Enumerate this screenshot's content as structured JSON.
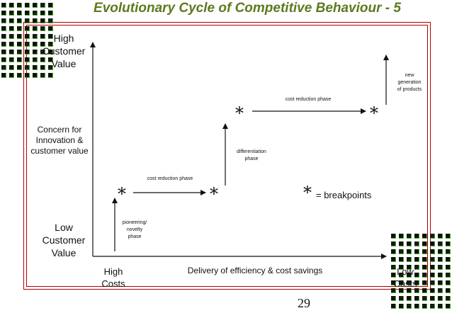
{
  "title": "Evolutionary Cycle of Competitive Behaviour - 5",
  "y_axis": {
    "top_label": "High\nCustomer\nValue",
    "middle_label": "Concern for\nInnovation &\ncustomer value",
    "bottom_label": "Low\nCustomer\nValue"
  },
  "x_axis": {
    "left_label": "High\nCosts",
    "middle_label": "Delivery of efficiency & cost savings",
    "right_label": "Low\nCosts"
  },
  "phases": {
    "pioneering": "pioneering/\nnovelty\nphase",
    "cost_reduction_1": "cost reduction phase",
    "differentiation": "differentiation\nphase",
    "cost_reduction_2": "cost reduction phase",
    "new_generation": "new\ngeneration\nof products"
  },
  "legend": {
    "symbol": "*",
    "text": "= breakpoints"
  },
  "page_number": "29",
  "colors": {
    "title": "#5c7a1e",
    "frame": "#b00000",
    "text": "#111111"
  }
}
